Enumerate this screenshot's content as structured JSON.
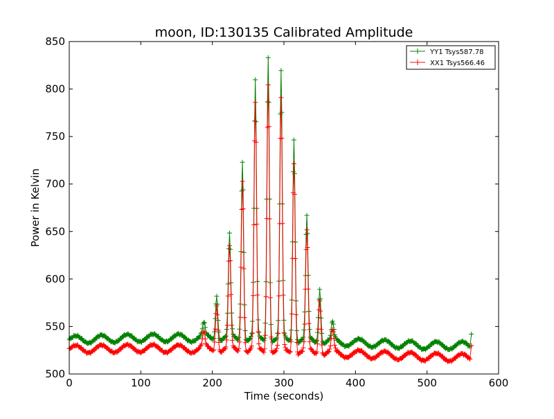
{
  "chart_data": {
    "type": "line",
    "title": "moon, ID:130135 Calibrated Amplitude",
    "xlabel": "Time (seconds)",
    "ylabel": "Power in Kelvin",
    "xlim": [
      0,
      600
    ],
    "ylim": [
      500,
      850
    ],
    "xticks": [
      0,
      100,
      200,
      300,
      400,
      500,
      600
    ],
    "yticks": [
      500,
      550,
      600,
      650,
      700,
      750,
      800,
      850
    ],
    "grid": false,
    "legend_position": "top-right",
    "marker": "+",
    "series": [
      {
        "name": "YY1 Tsys587.78",
        "color": "#008000",
        "baseline": {
          "x": [
            0,
            100,
            200,
            300,
            400,
            500,
            560
          ],
          "y": [
            536,
            538,
            538,
            536,
            533,
            530,
            530
          ]
        },
        "wave_amplitude": 4,
        "wave_period": 36,
        "peaks": [
          {
            "x": 188,
            "y": 551
          },
          {
            "x": 206,
            "y": 585
          },
          {
            "x": 224,
            "y": 645
          },
          {
            "x": 242,
            "y": 727
          },
          {
            "x": 260,
            "y": 805
          },
          {
            "x": 278,
            "y": 838
          },
          {
            "x": 296,
            "y": 815
          },
          {
            "x": 314,
            "y": 750
          },
          {
            "x": 332,
            "y": 664
          },
          {
            "x": 350,
            "y": 592
          },
          {
            "x": 368,
            "y": 552
          }
        ],
        "end_point": {
          "x": 562,
          "y": 542
        }
      },
      {
        "name": "XX1 Tsys566.46",
        "color": "#ff0000",
        "baseline": {
          "x": [
            0,
            100,
            200,
            300,
            400,
            500,
            560
          ],
          "y": [
            526,
            527,
            526,
            524,
            521,
            518,
            517
          ]
        },
        "wave_amplitude": 4,
        "wave_period": 36,
        "peaks": [
          {
            "x": 188,
            "y": 541
          },
          {
            "x": 206,
            "y": 575
          },
          {
            "x": 224,
            "y": 632
          },
          {
            "x": 242,
            "y": 706
          },
          {
            "x": 260,
            "y": 782
          },
          {
            "x": 278,
            "y": 809
          },
          {
            "x": 296,
            "y": 786
          },
          {
            "x": 314,
            "y": 726
          },
          {
            "x": 332,
            "y": 648
          },
          {
            "x": 350,
            "y": 580
          },
          {
            "x": 368,
            "y": 544
          }
        ],
        "end_point": {
          "x": 562,
          "y": 530
        }
      }
    ]
  }
}
